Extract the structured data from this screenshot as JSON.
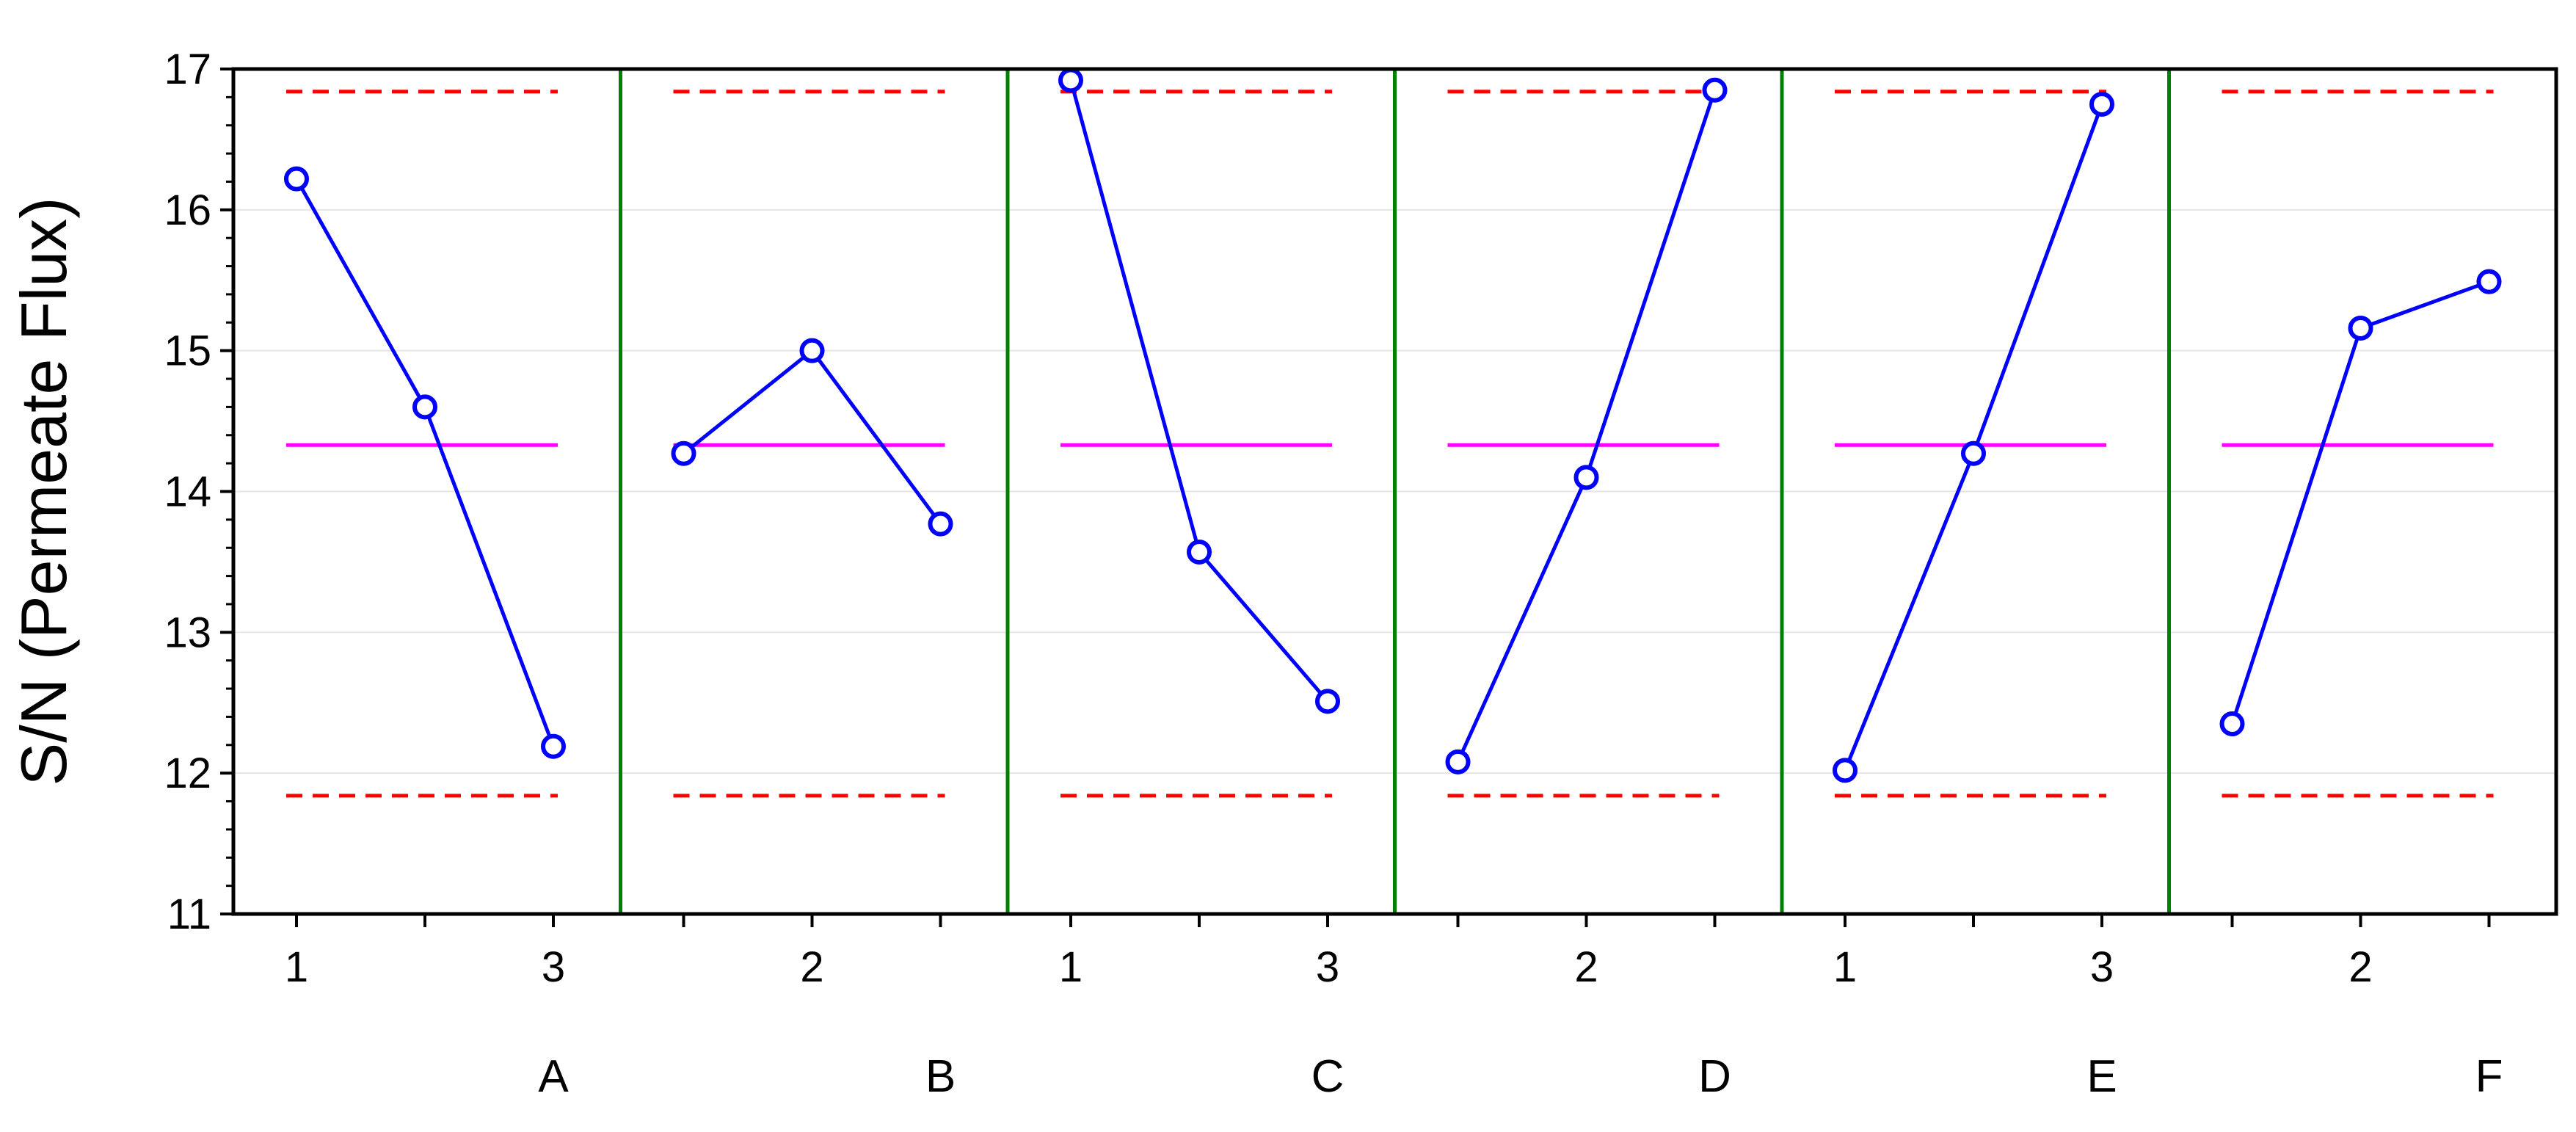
{
  "chart_data": {
    "type": "line",
    "title": "",
    "xlabel": "",
    "ylabel": "S/N  (Permeate Flux)",
    "ylim": [
      11,
      17
    ],
    "yticks": [
      "11",
      "12",
      "13",
      "14",
      "15",
      "16",
      "17"
    ],
    "grid": true,
    "factors": [
      {
        "name": "A",
        "tick_labels": [
          "1",
          "",
          "3"
        ],
        "values": [
          16.22,
          14.6,
          12.19
        ]
      },
      {
        "name": "B",
        "tick_labels": [
          "",
          "2",
          ""
        ],
        "values": [
          14.27,
          15.0,
          13.77
        ]
      },
      {
        "name": "C",
        "tick_labels": [
          "1",
          "",
          "3"
        ],
        "values": [
          16.92,
          13.57,
          12.51
        ]
      },
      {
        "name": "D",
        "tick_labels": [
          "",
          "2",
          ""
        ],
        "values": [
          12.08,
          14.1,
          16.85
        ]
      },
      {
        "name": "E",
        "tick_labels": [
          "1",
          "",
          "3"
        ],
        "values": [
          12.02,
          14.27,
          16.75
        ]
      },
      {
        "name": "F",
        "tick_labels": [
          "",
          "2",
          ""
        ],
        "values": [
          12.35,
          15.16,
          15.49
        ]
      }
    ],
    "mean_line": 14.33,
    "upper_limit": 16.84,
    "lower_limit": 11.84,
    "colors": {
      "series": "#0000ff",
      "mean": "#ff00ff",
      "limits": "#ff0000",
      "separators": "#008000",
      "grid": "#e6e6e6",
      "axis": "#000000"
    }
  }
}
